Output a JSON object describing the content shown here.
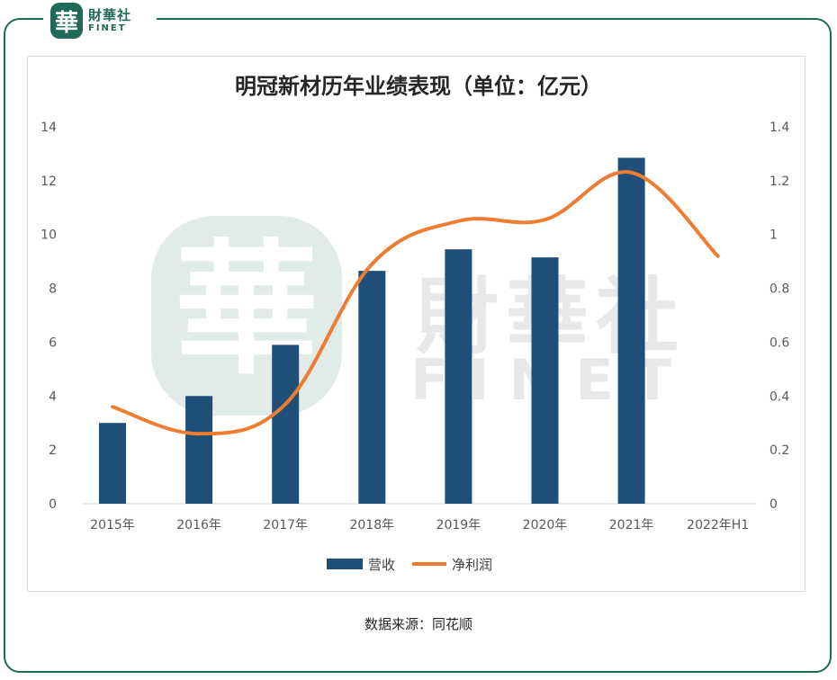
{
  "brand": {
    "seal_char": "華",
    "name_cn": "財華社",
    "name_en": "FINET",
    "watermark_cn": "財華社",
    "watermark_en": "FINET"
  },
  "chart_data": {
    "type": "bar",
    "title": "明冠新材历年业绩表现（单位：亿元）",
    "categories": [
      "2015年",
      "2016年",
      "2017年",
      "2018年",
      "2019年",
      "2020年",
      "2021年",
      "2022年H1"
    ],
    "series": [
      {
        "name": "营收",
        "type": "bar",
        "axis": "left",
        "color": "#1f4e79",
        "values": [
          3.0,
          4.0,
          5.9,
          8.65,
          9.45,
          9.15,
          12.85,
          null
        ]
      },
      {
        "name": "净利润",
        "type": "line",
        "axis": "right",
        "color": "#ed7d31",
        "values": [
          0.36,
          0.26,
          0.37,
          0.89,
          1.05,
          1.055,
          1.23,
          0.92
        ]
      }
    ],
    "y_left": {
      "min": 0,
      "max": 14,
      "ticks": [
        "0",
        "2",
        "4",
        "6",
        "8",
        "10",
        "12",
        "14"
      ]
    },
    "y_right": {
      "min": 0,
      "max": 1.4,
      "ticks": [
        "0",
        "0.2",
        "0.4",
        "0.6",
        "0.8",
        "1",
        "1.2",
        "1.4"
      ]
    },
    "grid": false,
    "legend_position": "bottom"
  },
  "source": "数据来源：同花顺"
}
